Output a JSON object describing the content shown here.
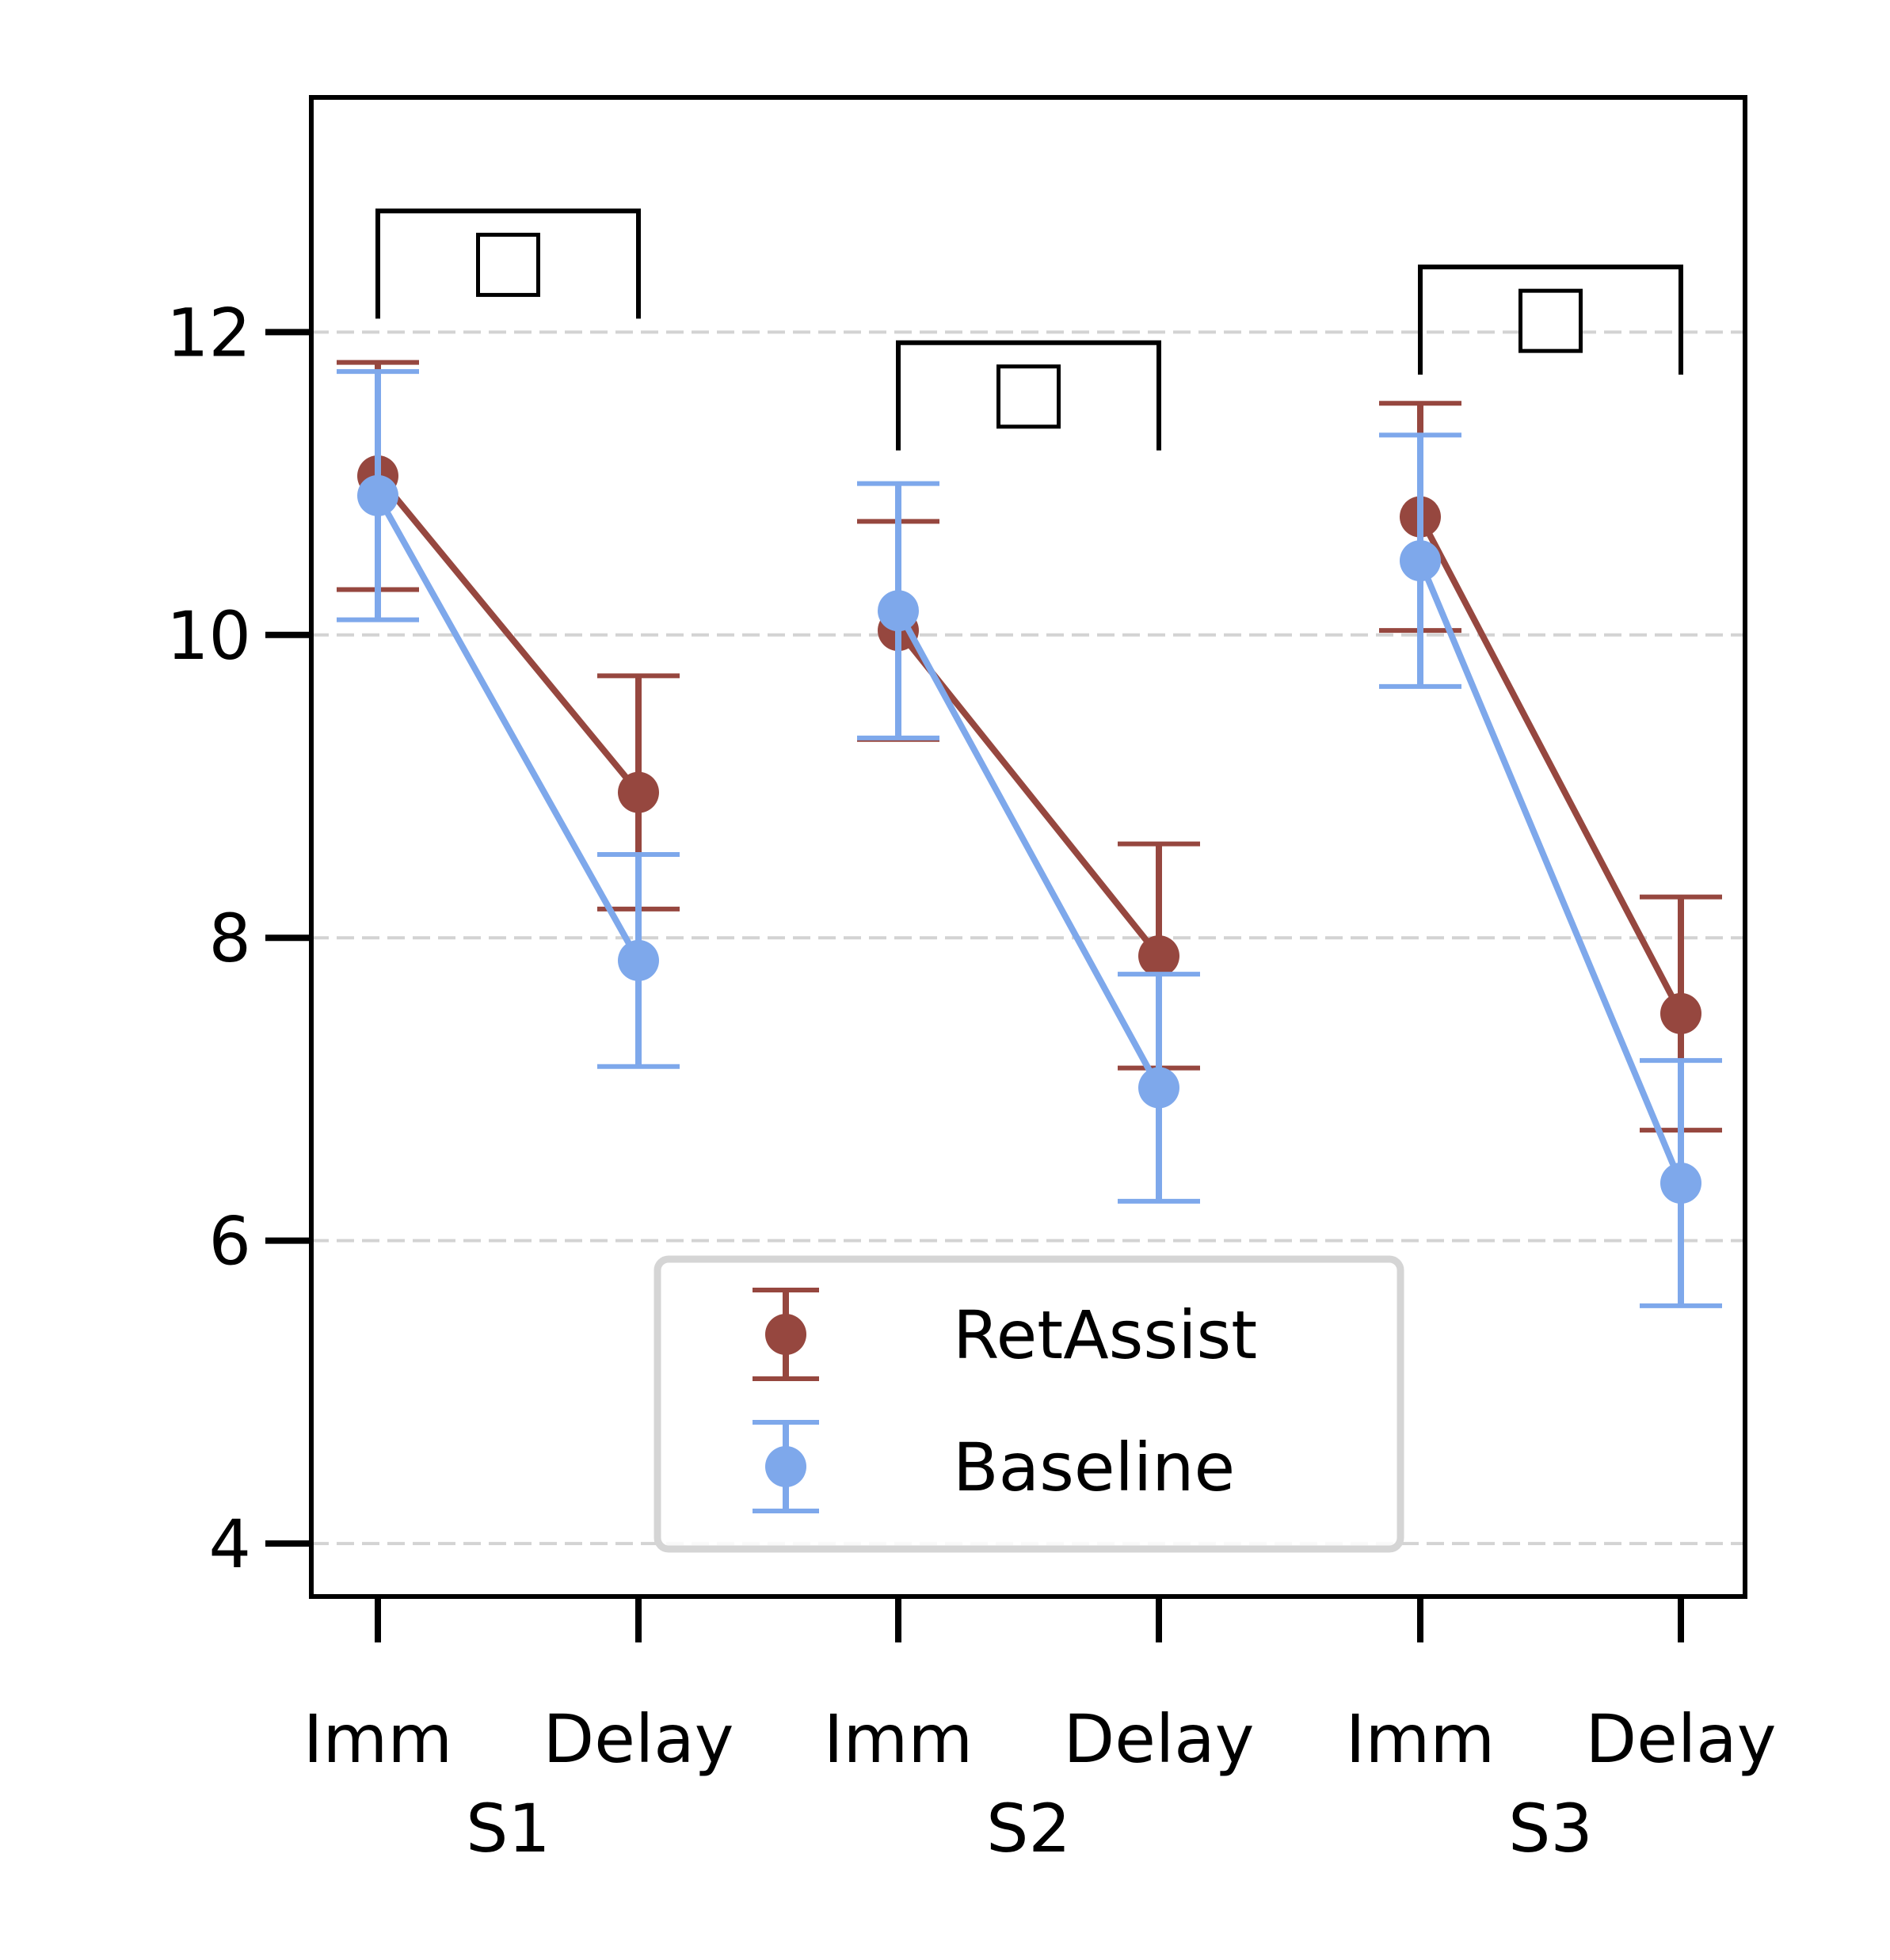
{
  "chart_data": {
    "type": "line",
    "x_categories": [
      "Imm",
      "Delay",
      "Imm",
      "Delay",
      "Imm",
      "Delay"
    ],
    "groups": [
      {
        "label": "S1",
        "x": [
          "Imm",
          "Delay"
        ]
      },
      {
        "label": "S2",
        "x": [
          "Imm",
          "Delay"
        ]
      },
      {
        "label": "S3",
        "x": [
          "Imm",
          "Delay"
        ]
      }
    ],
    "series": [
      {
        "name": "RetAssist",
        "color": "#96473F",
        "values": [
          [
            11.05,
            8.96
          ],
          [
            10.03,
            7.88
          ],
          [
            10.78,
            7.5
          ]
        ],
        "errors": [
          [
            0.75,
            0.77
          ],
          [
            0.72,
            0.74
          ],
          [
            0.75,
            0.77
          ]
        ]
      },
      {
        "name": "Baseline",
        "color": "#7EA8EB",
        "values": [
          [
            10.92,
            7.85
          ],
          [
            10.16,
            7.01
          ],
          [
            10.49,
            6.38
          ]
        ],
        "errors": [
          [
            0.82,
            0.7
          ],
          [
            0.84,
            0.75
          ],
          [
            0.83,
            0.81
          ]
        ]
      }
    ],
    "y_ticks": [
      "4",
      "6",
      "8",
      "10",
      "12"
    ],
    "ylim": [
      3.65,
      13.55
    ],
    "grid": "horizontal dashed",
    "legend_position": "lower center",
    "significance": [
      {
        "group": "S1",
        "y": 12.8,
        "marker": "□"
      },
      {
        "group": "S2",
        "y": 11.93,
        "marker": "□"
      },
      {
        "group": "S3",
        "y": 12.43,
        "marker": "□"
      }
    ],
    "title": "",
    "xlabel": "",
    "ylabel": ""
  }
}
